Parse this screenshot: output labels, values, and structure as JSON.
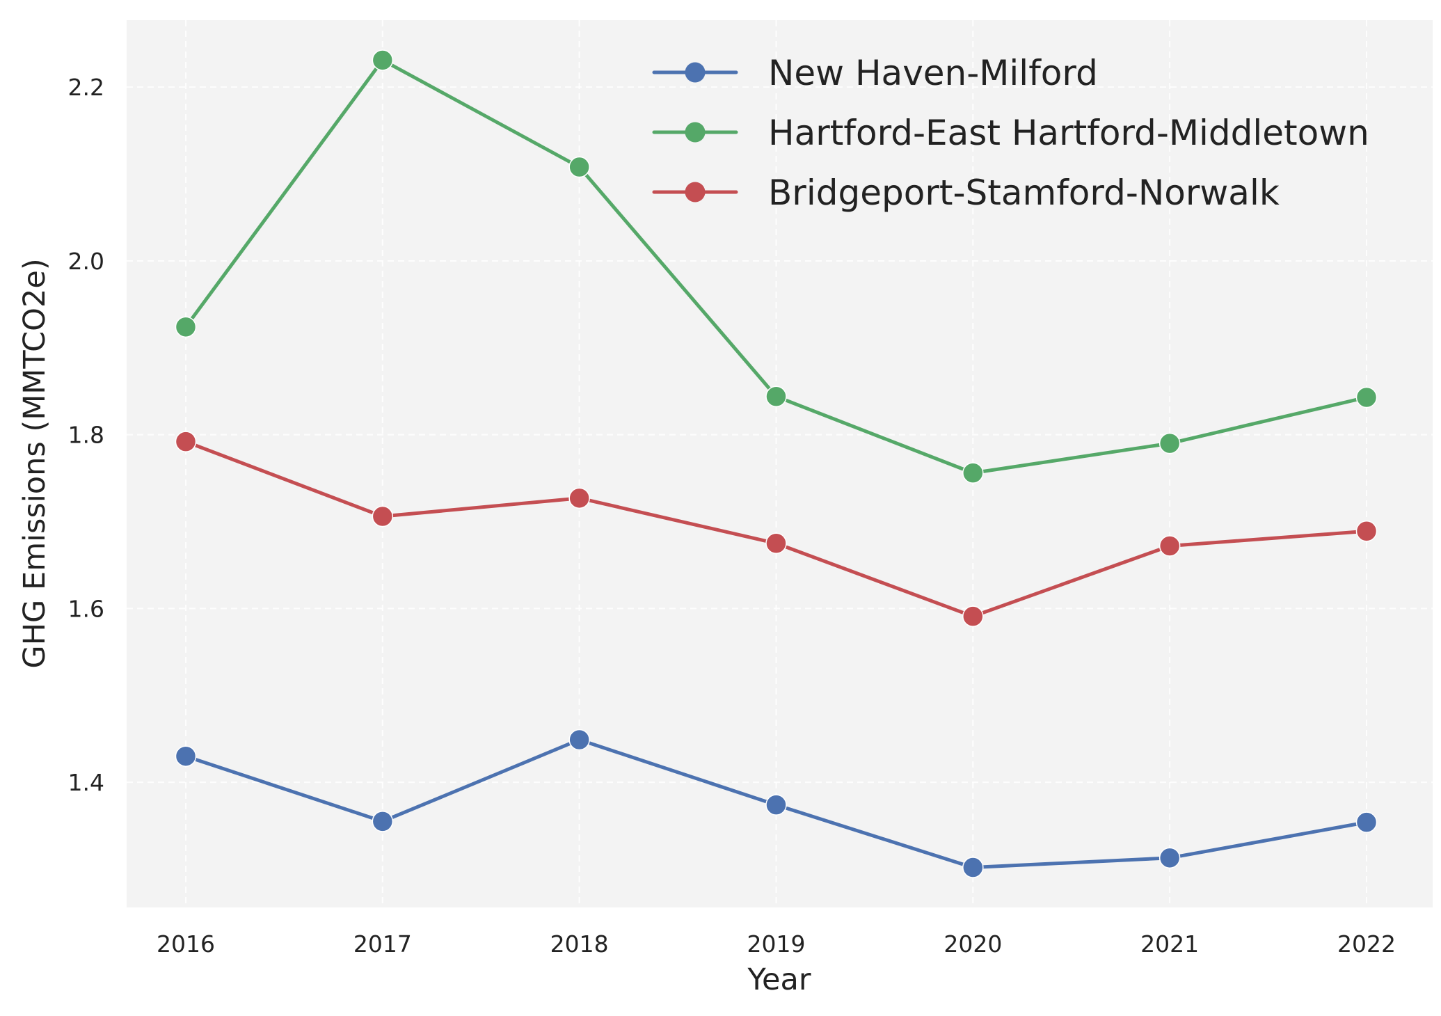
{
  "chart_data": {
    "type": "line",
    "title": "",
    "xlabel": "Year",
    "ylabel": "GHG Emissions (MMTCO2e)",
    "x": [
      2016,
      2017,
      2018,
      2019,
      2020,
      2021,
      2022
    ],
    "x_tick_labels": [
      "2016",
      "2017",
      "2018",
      "2019",
      "2020",
      "2021",
      "2022"
    ],
    "y_ticks": [
      1.4,
      1.6,
      1.8,
      2.0,
      2.2
    ],
    "y_tick_labels": [
      "1.4",
      "1.6",
      "1.8",
      "2.0",
      "2.2"
    ],
    "ylim": [
      1.256,
      2.277
    ],
    "grid": true,
    "legend_position": "top-right",
    "background_color": "#f3f3f3",
    "series": [
      {
        "name": "New Haven-Milford",
        "color": "#4c72b0",
        "values": [
          1.43,
          1.355,
          1.449,
          1.374,
          1.302,
          1.313,
          1.354
        ]
      },
      {
        "name": "Hartford-East Hartford-Middletown",
        "color": "#55a868",
        "values": [
          1.924,
          2.231,
          2.108,
          1.844,
          1.756,
          1.79,
          1.843
        ]
      },
      {
        "name": "Bridgeport-Stamford-Norwalk",
        "color": "#c44e52",
        "values": [
          1.792,
          1.706,
          1.727,
          1.675,
          1.591,
          1.672,
          1.689
        ]
      }
    ]
  }
}
